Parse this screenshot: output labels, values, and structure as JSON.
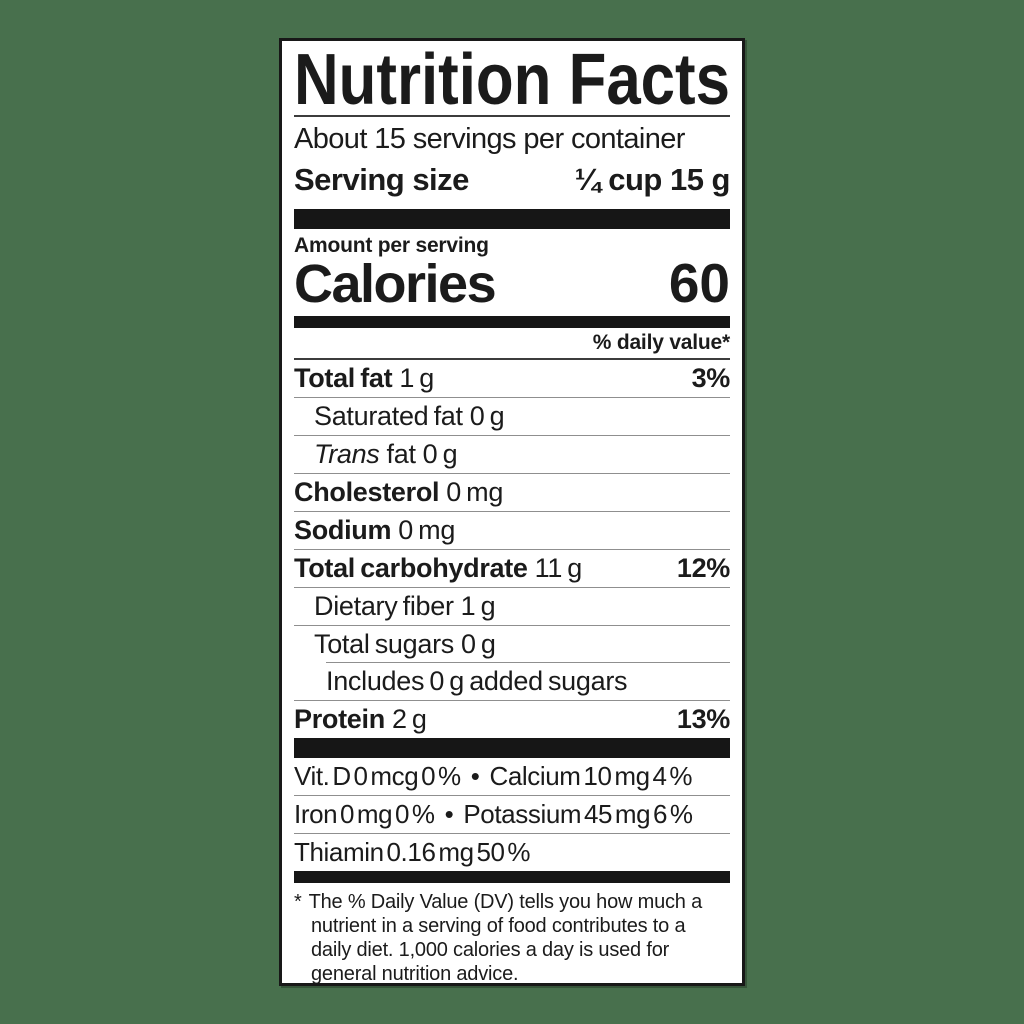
{
  "page": {
    "background_color": "#48704d"
  },
  "label": {
    "title": "Nutrition Facts",
    "servings_per_container": "About 15 servings per container",
    "serving_size": {
      "label": "Serving size",
      "value": "¼ cup 15 g"
    },
    "amount_per_serving": "Amount per serving",
    "calories": {
      "label": "Calories",
      "value": "60"
    },
    "daily_value_header": "% daily value*",
    "nutrient_rows": [
      {
        "name": "Total fat",
        "amount": "1 g",
        "dv": "3%"
      },
      {
        "name": "Saturated fat",
        "amount": "0 g",
        "dv": ""
      },
      {
        "name_italic": "Trans",
        "name": "fat",
        "amount": "0 g",
        "dv": ""
      },
      {
        "name": "Cholesterol",
        "amount": "0 mg",
        "dv": ""
      },
      {
        "name": "Sodium",
        "amount": "0 mg",
        "dv": ""
      },
      {
        "name": "Total carbohydrate",
        "amount": "11 g",
        "dv": "12%"
      },
      {
        "name": "Dietary fiber",
        "amount": "1 g",
        "dv": ""
      },
      {
        "name": "Total sugars",
        "amount": "0 g",
        "dv": ""
      },
      {
        "name": "Includes 0 g added sugars",
        "amount": "",
        "dv": ""
      },
      {
        "name": "Protein",
        "amount": "2 g",
        "dv": "13%"
      }
    ],
    "micronutrient_lines": [
      {
        "left": "Vit. D 0 mcg 0 %",
        "bullet": "•",
        "right": "Calcium 10 mg 4 %"
      },
      {
        "left": "Iron 0 mg 0 %",
        "bullet": "•",
        "right": "Potassium 45 mg 6 %"
      },
      {
        "left": "Thiamin 0.16 mg 50 %",
        "bullet": "",
        "right": ""
      }
    ],
    "footnote": {
      "marker": "*",
      "text": "The % Daily Value (DV) tells you how much a nutrient in a serving of food contributes to a daily diet. 1,000 calories a day is used for general nutrition advice."
    }
  }
}
